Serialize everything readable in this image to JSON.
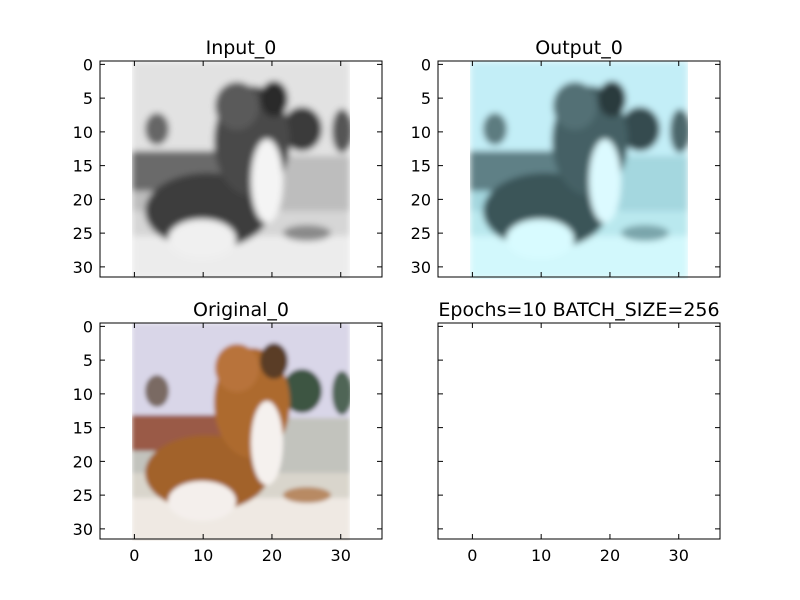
{
  "chart_data": [
    {
      "type": "image",
      "title": "Input_0",
      "xlabel": "",
      "ylabel": "",
      "image_kind": "grayscale",
      "image_extent": [
        -0.5,
        31.5
      ],
      "xlim": [
        -5,
        36
      ],
      "ylim": [
        31.5,
        -0.5
      ],
      "xticks": [],
      "yticks": [
        0,
        5,
        10,
        15,
        20,
        25,
        30
      ],
      "grid": false
    },
    {
      "type": "image",
      "title": "Output_0",
      "xlabel": "",
      "ylabel": "",
      "image_kind": "cyan-tinted reconstruction",
      "image_extent": [
        -0.5,
        31.5
      ],
      "xlim": [
        -5,
        36
      ],
      "ylim": [
        31.5,
        -0.5
      ],
      "xticks": [],
      "yticks": [
        0,
        5,
        10,
        15,
        20,
        25,
        30
      ],
      "grid": false
    },
    {
      "type": "image",
      "title": "Original_0",
      "xlabel": "",
      "ylabel": "",
      "image_kind": "color",
      "image_extent": [
        -0.5,
        31.5
      ],
      "xlim": [
        -5,
        36
      ],
      "ylim": [
        31.5,
        -0.5
      ],
      "xticks": [
        0,
        10,
        20,
        30
      ],
      "yticks": [
        0,
        5,
        10,
        15,
        20,
        25,
        30
      ],
      "grid": false
    },
    {
      "type": "image",
      "title": "Epochs=10 BATCH_SIZE=256",
      "xlabel": "",
      "ylabel": "",
      "image_kind": "empty",
      "image_extent": null,
      "xlim": [
        -5,
        36
      ],
      "ylim": [
        31.5,
        -0.5
      ],
      "xticks": [
        0,
        10,
        20,
        30
      ],
      "yticks": [],
      "grid": false
    }
  ]
}
